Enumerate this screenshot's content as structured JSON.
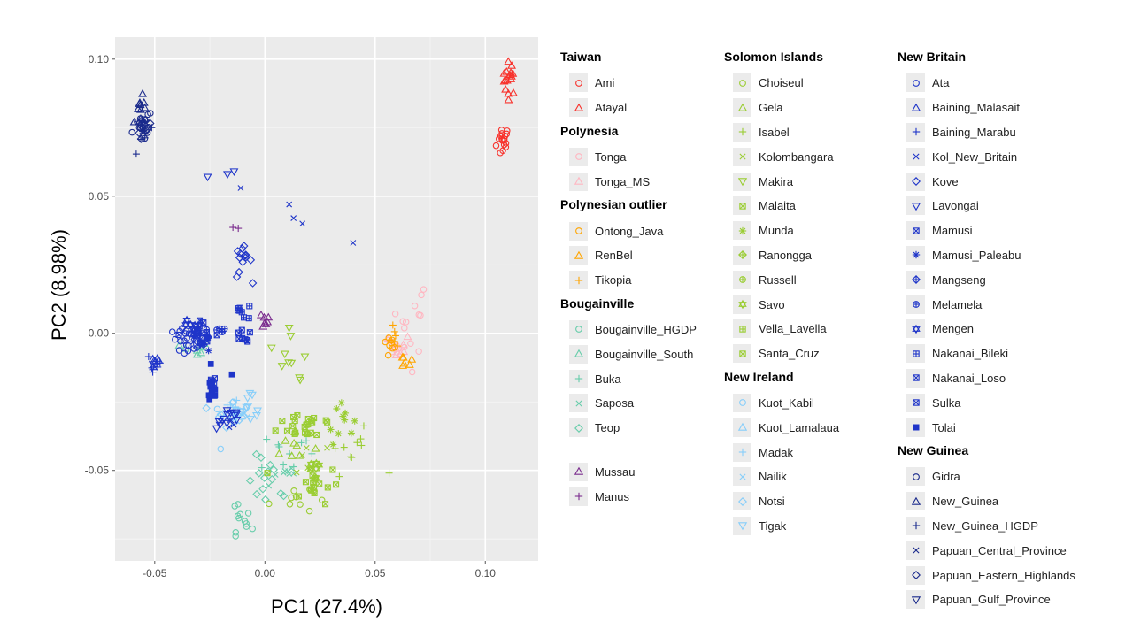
{
  "chart_data": {
    "type": "scatter",
    "xlabel": "PC1  (27.4%)",
    "ylabel": "PC2  (8.98%)",
    "xlim": [
      -0.068,
      0.124
    ],
    "ylim": [
      -0.083,
      0.108
    ],
    "x_ticks": [
      -0.05,
      0.0,
      0.05,
      0.1
    ],
    "x_tick_labels": [
      "-0.05",
      "0.00",
      "0.05",
      "0.10"
    ],
    "y_ticks": [
      -0.05,
      0.0,
      0.05,
      0.1
    ],
    "y_tick_labels": [
      "-0.05",
      "0.00",
      "0.05",
      "0.10"
    ],
    "grid": true,
    "legend_position": "right",
    "groups": [
      {
        "title": "Taiwan",
        "entries": [
          {
            "name": "Ami",
            "color": "#f8312b",
            "shape": "circle"
          },
          {
            "name": "Atayal",
            "color": "#f8312b",
            "shape": "triangle"
          }
        ]
      },
      {
        "title": "Polynesia",
        "entries": [
          {
            "name": "Tonga",
            "color": "#ffb6c1",
            "shape": "circle"
          },
          {
            "name": "Tonga_MS",
            "color": "#ffb6c1",
            "shape": "triangle"
          }
        ]
      },
      {
        "title": "Polynesian outlier",
        "entries": [
          {
            "name": "Ontong_Java",
            "color": "#ffa500",
            "shape": "circle"
          },
          {
            "name": "RenBel",
            "color": "#ffa500",
            "shape": "triangle"
          },
          {
            "name": "Tikopia",
            "color": "#ffa500",
            "shape": "plus"
          }
        ]
      },
      {
        "title": "Bougainville",
        "entries": [
          {
            "name": "Bougainville_HGDP",
            "color": "#66cdaa",
            "shape": "circle"
          },
          {
            "name": "Bougainville_South",
            "color": "#66cdaa",
            "shape": "triangle"
          },
          {
            "name": "Buka",
            "color": "#66cdaa",
            "shape": "plus"
          },
          {
            "name": "Saposa",
            "color": "#66cdaa",
            "shape": "x"
          },
          {
            "name": "Teop",
            "color": "#66cdaa",
            "shape": "diamond"
          }
        ]
      },
      {
        "title": "",
        "entries": [
          {
            "name": "Mussau",
            "color": "#7b2d8e",
            "shape": "triangle"
          },
          {
            "name": "Manus",
            "color": "#7b2d8e",
            "shape": "plus"
          }
        ]
      },
      {
        "title": "Solomon Islands",
        "entries": [
          {
            "name": "Choiseul",
            "color": "#9acd32",
            "shape": "circle"
          },
          {
            "name": "Gela",
            "color": "#9acd32",
            "shape": "triangle"
          },
          {
            "name": "Isabel",
            "color": "#9acd32",
            "shape": "plus"
          },
          {
            "name": "Kolombangara",
            "color": "#9acd32",
            "shape": "x"
          },
          {
            "name": "Makira",
            "color": "#9acd32",
            "shape": "tri-down"
          },
          {
            "name": "Malaita",
            "color": "#9acd32",
            "shape": "square-x"
          },
          {
            "name": "Munda",
            "color": "#9acd32",
            "shape": "asterisk"
          },
          {
            "name": "Ranongga",
            "color": "#9acd32",
            "shape": "diamond-plus"
          },
          {
            "name": "Russell",
            "color": "#9acd32",
            "shape": "circle-plus"
          },
          {
            "name": "Savo",
            "color": "#9acd32",
            "shape": "star"
          },
          {
            "name": "Vella_Lavella",
            "color": "#9acd32",
            "shape": "square-plus"
          },
          {
            "name": "Santa_Cruz",
            "color": "#9acd32",
            "shape": "square-x"
          }
        ]
      },
      {
        "title": "New Ireland",
        "entries": [
          {
            "name": "Kuot_Kabil",
            "color": "#87cefa",
            "shape": "circle"
          },
          {
            "name": "Kuot_Lamalaua",
            "color": "#87cefa",
            "shape": "triangle"
          },
          {
            "name": "Madak",
            "color": "#87cefa",
            "shape": "plus"
          },
          {
            "name": "Nailik",
            "color": "#87cefa",
            "shape": "x"
          },
          {
            "name": "Notsi",
            "color": "#87cefa",
            "shape": "diamond"
          },
          {
            "name": "Tigak",
            "color": "#87cefa",
            "shape": "tri-down"
          }
        ]
      },
      {
        "title": "New Britain",
        "entries": [
          {
            "name": "Ata",
            "color": "#1f35c9",
            "shape": "circle"
          },
          {
            "name": "Baining_Malasait",
            "color": "#1f35c9",
            "shape": "triangle"
          },
          {
            "name": "Baining_Marabu",
            "color": "#1f35c9",
            "shape": "plus"
          },
          {
            "name": "Kol_New_Britain",
            "color": "#1f35c9",
            "shape": "x"
          },
          {
            "name": "Kove",
            "color": "#1f35c9",
            "shape": "diamond"
          },
          {
            "name": "Lavongai",
            "color": "#1f35c9",
            "shape": "tri-down"
          },
          {
            "name": "Mamusi",
            "color": "#1f35c9",
            "shape": "square-x"
          },
          {
            "name": "Mamusi_Paleabu",
            "color": "#1f35c9",
            "shape": "asterisk"
          },
          {
            "name": "Mangseng",
            "color": "#1f35c9",
            "shape": "diamond-plus"
          },
          {
            "name": "Melamela",
            "color": "#1f35c9",
            "shape": "circle-plus"
          },
          {
            "name": "Mengen",
            "color": "#1f35c9",
            "shape": "star"
          },
          {
            "name": "Nakanai_Bileki",
            "color": "#1f35c9",
            "shape": "square-plus"
          },
          {
            "name": "Nakanai_Loso",
            "color": "#1f35c9",
            "shape": "square-x"
          },
          {
            "name": "Sulka",
            "color": "#1f35c9",
            "shape": "square-x"
          },
          {
            "name": "Tolai",
            "color": "#1f35c9",
            "shape": "square-filled"
          }
        ]
      },
      {
        "title": "New Guinea",
        "entries": [
          {
            "name": "Gidra",
            "color": "#1a2a8c",
            "shape": "circle"
          },
          {
            "name": "New_Guinea",
            "color": "#1a2a8c",
            "shape": "triangle"
          },
          {
            "name": "New_Guinea_HGDP",
            "color": "#1a2a8c",
            "shape": "plus"
          },
          {
            "name": "Papuan_Central_Province",
            "color": "#1a2a8c",
            "shape": "x"
          },
          {
            "name": "Papuan_Eastern_Highlands",
            "color": "#1a2a8c",
            "shape": "diamond"
          },
          {
            "name": "Papuan_Gulf_Province",
            "color": "#1a2a8c",
            "shape": "tri-down"
          }
        ]
      }
    ],
    "clusters": [
      {
        "series": "Ami",
        "shape": "circle",
        "color": "#f8312b",
        "x": 0.108,
        "y": 0.07,
        "sx": 0.0015,
        "sy": 0.003,
        "n": 18
      },
      {
        "series": "Atayal",
        "shape": "triangle",
        "color": "#f8312b",
        "x": 0.111,
        "y": 0.093,
        "sx": 0.0015,
        "sy": 0.003,
        "n": 16
      },
      {
        "series": "Tonga",
        "shape": "circle",
        "color": "#ffb6c1",
        "x": 0.064,
        "y": -0.002,
        "sx": 0.004,
        "sy": 0.006,
        "n": 16
      },
      {
        "series": "Tonga_MS",
        "shape": "triangle",
        "color": "#ffb6c1",
        "x": 0.061,
        "y": -0.005,
        "sx": 0.0025,
        "sy": 0.0025,
        "n": 8
      },
      {
        "series": "Ontong_Java",
        "shape": "circle",
        "color": "#ffa500",
        "x": 0.056,
        "y": -0.005,
        "sx": 0.002,
        "sy": 0.002,
        "n": 8
      },
      {
        "series": "RenBel",
        "shape": "triangle",
        "color": "#ffa500",
        "x": 0.064,
        "y": -0.01,
        "sx": 0.0015,
        "sy": 0.0015,
        "n": 6
      },
      {
        "series": "Tikopia",
        "shape": "plus",
        "color": "#ffa500",
        "x": 0.059,
        "y": -0.002,
        "sx": 0.0015,
        "sy": 0.002,
        "n": 6
      },
      {
        "series": "Bougainville_HGDP",
        "shape": "circle",
        "color": "#66cdaa",
        "x": -0.012,
        "y": -0.069,
        "sx": 0.003,
        "sy": 0.004,
        "n": 12
      },
      {
        "series": "Teop",
        "shape": "diamond",
        "color": "#66cdaa",
        "x": 0.002,
        "y": -0.055,
        "sx": 0.005,
        "sy": 0.005,
        "n": 14
      },
      {
        "series": "Buka",
        "shape": "plus",
        "color": "#66cdaa",
        "x": 0.01,
        "y": -0.043,
        "sx": 0.006,
        "sy": 0.004,
        "n": 10
      },
      {
        "series": "Saposa",
        "shape": "x",
        "color": "#66cdaa",
        "x": 0.008,
        "y": -0.05,
        "sx": 0.004,
        "sy": 0.004,
        "n": 8
      },
      {
        "series": "Bougainville_South",
        "shape": "triangle",
        "color": "#66cdaa",
        "x": -0.032,
        "y": -0.006,
        "sx": 0.003,
        "sy": 0.0015,
        "n": 8
      },
      {
        "series": "Mussau",
        "shape": "triangle",
        "color": "#7b2d8e",
        "x": -0.001,
        "y": 0.005,
        "sx": 0.002,
        "sy": 0.0015,
        "n": 8
      },
      {
        "series": "Manus",
        "shape": "plus",
        "color": "#7b2d8e",
        "x": -0.014,
        "y": 0.038,
        "sx": 0.0025,
        "sy": 0.0006,
        "n": 2
      },
      {
        "series": "Malaita",
        "shape": "square-x",
        "color": "#9acd32",
        "x": 0.02,
        "y": -0.033,
        "sx": 0.007,
        "sy": 0.003,
        "n": 22
      },
      {
        "series": "Santa_Cruz",
        "shape": "square-x",
        "color": "#9acd32",
        "x": 0.022,
        "y": -0.055,
        "sx": 0.006,
        "sy": 0.0035,
        "n": 16
      },
      {
        "series": "Munda",
        "shape": "asterisk",
        "color": "#9acd32",
        "x": 0.034,
        "y": -0.03,
        "sx": 0.003,
        "sy": 0.005,
        "n": 10
      },
      {
        "series": "Isabel",
        "shape": "plus",
        "color": "#9acd32",
        "x": 0.04,
        "y": -0.043,
        "sx": 0.006,
        "sy": 0.004,
        "n": 10
      },
      {
        "series": "Makira",
        "shape": "tri-down",
        "color": "#9acd32",
        "x": 0.012,
        "y": -0.01,
        "sx": 0.005,
        "sy": 0.004,
        "n": 8
      },
      {
        "series": "Gela",
        "shape": "triangle",
        "color": "#9acd32",
        "x": 0.014,
        "y": -0.04,
        "sx": 0.005,
        "sy": 0.005,
        "n": 10
      },
      {
        "series": "Choiseul",
        "shape": "circle",
        "color": "#9acd32",
        "x": 0.012,
        "y": -0.06,
        "sx": 0.005,
        "sy": 0.003,
        "n": 10
      },
      {
        "series": "Savo",
        "shape": "star",
        "color": "#9acd32",
        "x": 0.024,
        "y": -0.05,
        "sx": 0.004,
        "sy": 0.003,
        "n": 6
      },
      {
        "series": "Kolombangara",
        "shape": "x",
        "color": "#9acd32",
        "x": 0.018,
        "y": -0.047,
        "sx": 0.005,
        "sy": 0.003,
        "n": 6
      },
      {
        "series": "Notsi",
        "shape": "diamond",
        "color": "#87cefa",
        "x": -0.015,
        "y": -0.028,
        "sx": 0.004,
        "sy": 0.003,
        "n": 12
      },
      {
        "series": "Tigak",
        "shape": "tri-down",
        "color": "#87cefa",
        "x": -0.005,
        "y": -0.027,
        "sx": 0.004,
        "sy": 0.003,
        "n": 10
      },
      {
        "series": "Kuot_Kabil",
        "shape": "circle",
        "color": "#87cefa",
        "x": -0.017,
        "y": -0.032,
        "sx": 0.003,
        "sy": 0.003,
        "n": 6
      },
      {
        "series": "Madak",
        "shape": "plus",
        "color": "#87cefa",
        "x": -0.014,
        "y": -0.026,
        "sx": 0.003,
        "sy": 0.002,
        "n": 6
      },
      {
        "series": "Nailik",
        "shape": "x",
        "color": "#87cefa",
        "x": -0.012,
        "y": -0.03,
        "sx": 0.003,
        "sy": 0.002,
        "n": 6
      },
      {
        "series": "Ata",
        "shape": "circle",
        "color": "#1f35c9",
        "x": -0.035,
        "y": -0.002,
        "sx": 0.004,
        "sy": 0.002,
        "n": 20
      },
      {
        "series": "Mamusi",
        "shape": "square-x",
        "color": "#1f35c9",
        "x": -0.031,
        "y": 0.0,
        "sx": 0.005,
        "sy": 0.002,
        "n": 16
      },
      {
        "series": "Kove",
        "shape": "diamond",
        "color": "#1f35c9",
        "x": -0.01,
        "y": 0.026,
        "sx": 0.002,
        "sy": 0.003,
        "n": 14
      },
      {
        "series": "Lavongai",
        "shape": "tri-down",
        "color": "#1f35c9",
        "x": -0.016,
        "y": -0.031,
        "sx": 0.003,
        "sy": 0.002,
        "n": 12
      },
      {
        "series": "Baining_Marabu",
        "shape": "plus",
        "color": "#1f35c9",
        "x": -0.05,
        "y": -0.011,
        "sx": 0.002,
        "sy": 0.003,
        "n": 8
      },
      {
        "series": "Baining_Malasait",
        "shape": "triangle",
        "color": "#1f35c9",
        "x": -0.05,
        "y": -0.01,
        "sx": 0.0015,
        "sy": 0.002,
        "n": 6
      },
      {
        "series": "Kol_New_Britain",
        "shape": "x",
        "color": "#1f35c9",
        "x": -0.016,
        "y": -0.032,
        "sx": 0.002,
        "sy": 0.002,
        "n": 6
      },
      {
        "series": "Tolai",
        "shape": "square-filled",
        "color": "#1f35c9",
        "x": -0.024,
        "y": -0.021,
        "sx": 0.0012,
        "sy": 0.003,
        "n": 12
      },
      {
        "series": "Nakanai_Bileki",
        "shape": "square-plus",
        "color": "#1f35c9",
        "x": -0.01,
        "y": 0.008,
        "sx": 0.003,
        "sy": 0.0015,
        "n": 8
      },
      {
        "series": "Nakanai_Loso",
        "shape": "square-x",
        "color": "#1f35c9",
        "x": -0.01,
        "y": -0.002,
        "sx": 0.002,
        "sy": 0.0015,
        "n": 8
      },
      {
        "series": "Sulka",
        "shape": "square-x",
        "color": "#1f35c9",
        "x": -0.024,
        "y": -0.019,
        "sx": 0.001,
        "sy": 0.002,
        "n": 6
      },
      {
        "series": "Mengen",
        "shape": "star",
        "color": "#1f35c9",
        "x": -0.034,
        "y": 0.002,
        "sx": 0.003,
        "sy": 0.0015,
        "n": 6
      },
      {
        "series": "Mangseng",
        "shape": "diamond-plus",
        "color": "#1f35c9",
        "x": -0.028,
        "y": -0.003,
        "sx": 0.003,
        "sy": 0.0015,
        "n": 6
      },
      {
        "series": "Melamela",
        "shape": "circle-plus",
        "color": "#1f35c9",
        "x": -0.022,
        "y": 0.001,
        "sx": 0.003,
        "sy": 0.0015,
        "n": 6
      },
      {
        "series": "Mamusi_Paleabu",
        "shape": "asterisk",
        "color": "#1f35c9",
        "x": -0.03,
        "y": -0.004,
        "sx": 0.003,
        "sy": 0.0015,
        "n": 6
      },
      {
        "series": "Gidra",
        "shape": "circle",
        "color": "#1a2a8c",
        "x": -0.055,
        "y": 0.076,
        "sx": 0.002,
        "sy": 0.003,
        "n": 14
      },
      {
        "series": "New_Guinea",
        "shape": "triangle",
        "color": "#1a2a8c",
        "x": -0.056,
        "y": 0.08,
        "sx": 0.0015,
        "sy": 0.003,
        "n": 12
      },
      {
        "series": "New_Guinea_HGDP",
        "shape": "plus",
        "color": "#1a2a8c",
        "x": -0.055,
        "y": 0.073,
        "sx": 0.0015,
        "sy": 0.003,
        "n": 8
      },
      {
        "series": "Papuan_Eastern_Highlands",
        "shape": "diamond",
        "color": "#1a2a8c",
        "x": -0.054,
        "y": 0.076,
        "sx": 0.002,
        "sy": 0.003,
        "n": 10
      }
    ],
    "points": [
      {
        "series": "Lavongai",
        "shape": "tri-down",
        "color": "#1f35c9",
        "x": -0.026,
        "y": 0.057
      },
      {
        "series": "Lavongai",
        "shape": "tri-down",
        "color": "#1f35c9",
        "x": -0.017,
        "y": 0.058
      },
      {
        "series": "Lavongai",
        "shape": "tri-down",
        "color": "#1f35c9",
        "x": -0.014,
        "y": 0.059
      },
      {
        "series": "Kol_New_Britain",
        "shape": "x",
        "color": "#1f35c9",
        "x": -0.011,
        "y": 0.053
      },
      {
        "series": "Kol_New_Britain",
        "shape": "x",
        "color": "#1f35c9",
        "x": 0.011,
        "y": 0.047
      },
      {
        "series": "Kol_New_Britain",
        "shape": "x",
        "color": "#1f35c9",
        "x": 0.013,
        "y": 0.042
      },
      {
        "series": "Kol_New_Britain",
        "shape": "x",
        "color": "#1f35c9",
        "x": 0.017,
        "y": 0.04
      },
      {
        "series": "Kol_New_Britain",
        "shape": "x",
        "color": "#1f35c9",
        "x": 0.04,
        "y": 0.033
      },
      {
        "series": "Tolai",
        "shape": "square-filled",
        "color": "#1f35c9",
        "x": -0.015,
        "y": -0.015
      },
      {
        "series": "Tonga",
        "shape": "circle",
        "color": "#ffb6c1",
        "x": 0.071,
        "y": 0.014
      },
      {
        "series": "Tonga",
        "shape": "circle",
        "color": "#ffb6c1",
        "x": 0.072,
        "y": 0.016
      },
      {
        "series": "Tonga",
        "shape": "circle",
        "color": "#ffb6c1",
        "x": 0.068,
        "y": 0.01
      },
      {
        "series": "Makira",
        "shape": "tri-down",
        "color": "#9acd32",
        "x": 0.016,
        "y": -0.017
      },
      {
        "series": "Makira",
        "shape": "tri-down",
        "color": "#9acd32",
        "x": 0.011,
        "y": 0.002
      }
    ]
  }
}
